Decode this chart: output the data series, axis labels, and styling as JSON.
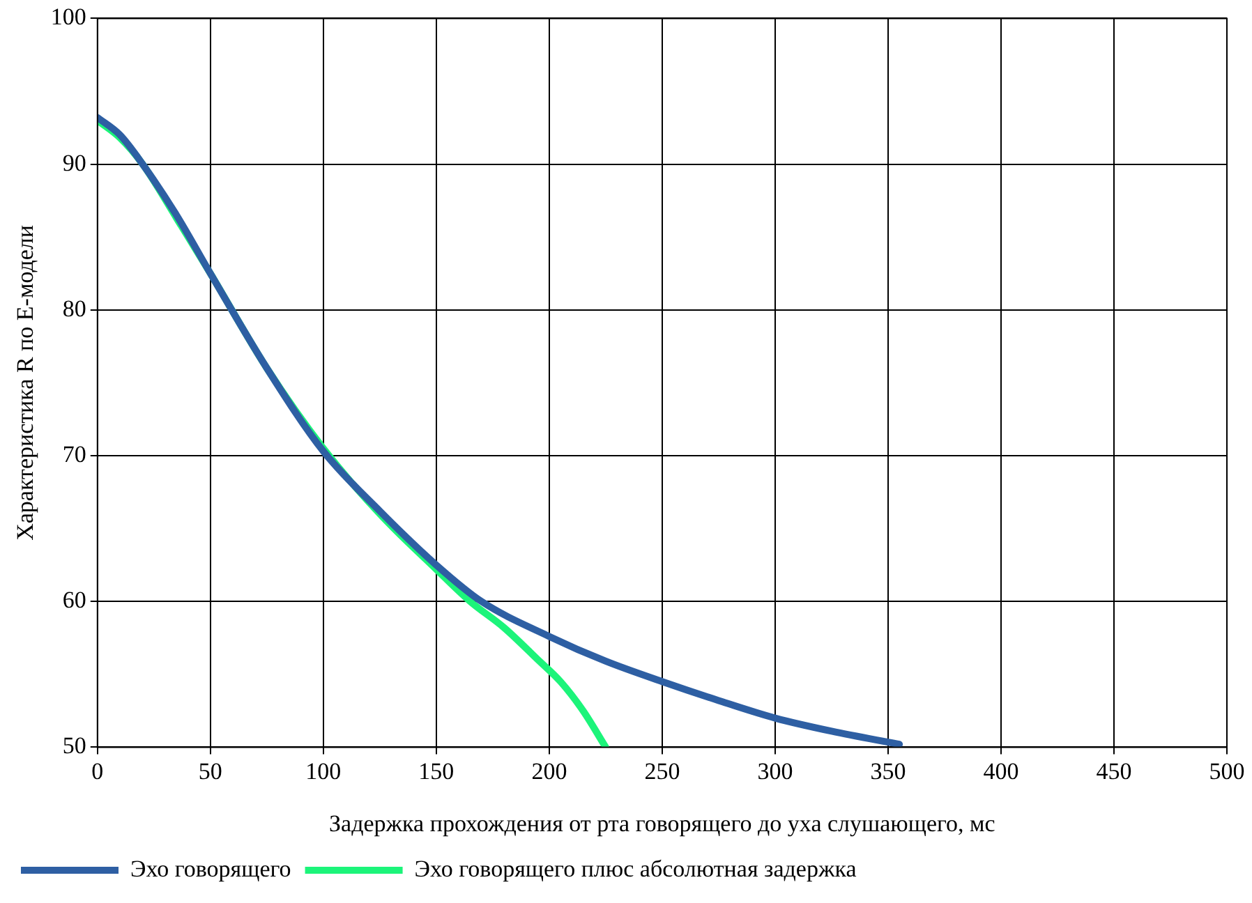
{
  "chart_data": {
    "type": "line",
    "xlabel": "Задержка прохождения от рта говорящего до уха слушающего, мс",
    "ylabel": "Характеристика R по E-модели",
    "xlim": [
      0,
      500
    ],
    "xticks": [
      0,
      50,
      100,
      150,
      200,
      250,
      300,
      350,
      400,
      450,
      500
    ],
    "ylim": [
      50,
      100
    ],
    "yticks": [
      50,
      60,
      70,
      80,
      90,
      100
    ],
    "grid": true,
    "legend": "bottom left",
    "marker": "none",
    "line_style": "solid",
    "series": [
      {
        "name": "Эхо говорящего",
        "color": "#2e5fa3",
        "x": [
          0,
          10,
          20,
          35,
          50,
          75,
          100,
          125,
          150,
          170,
          200,
          225,
          250,
          275,
          300,
          325,
          355
        ],
        "values": [
          93.2,
          92,
          90,
          86.5,
          82.5,
          76,
          70.3,
          66.2,
          62.5,
          60,
          57.6,
          55.9,
          54.5,
          53.2,
          52,
          51.1,
          50.2
        ]
      },
      {
        "name": "Эхо говорящего плюс абсолютная задержка",
        "color": "#1cf47a",
        "x": [
          0,
          10,
          20,
          35,
          50,
          75,
          100,
          125,
          150,
          165,
          180,
          195,
          205,
          215,
          225
        ],
        "values": [
          93,
          91.8,
          90,
          86.3,
          82.5,
          76,
          70.5,
          66,
          62.2,
          60,
          58.2,
          56,
          54.5,
          52.5,
          50
        ]
      }
    ]
  }
}
